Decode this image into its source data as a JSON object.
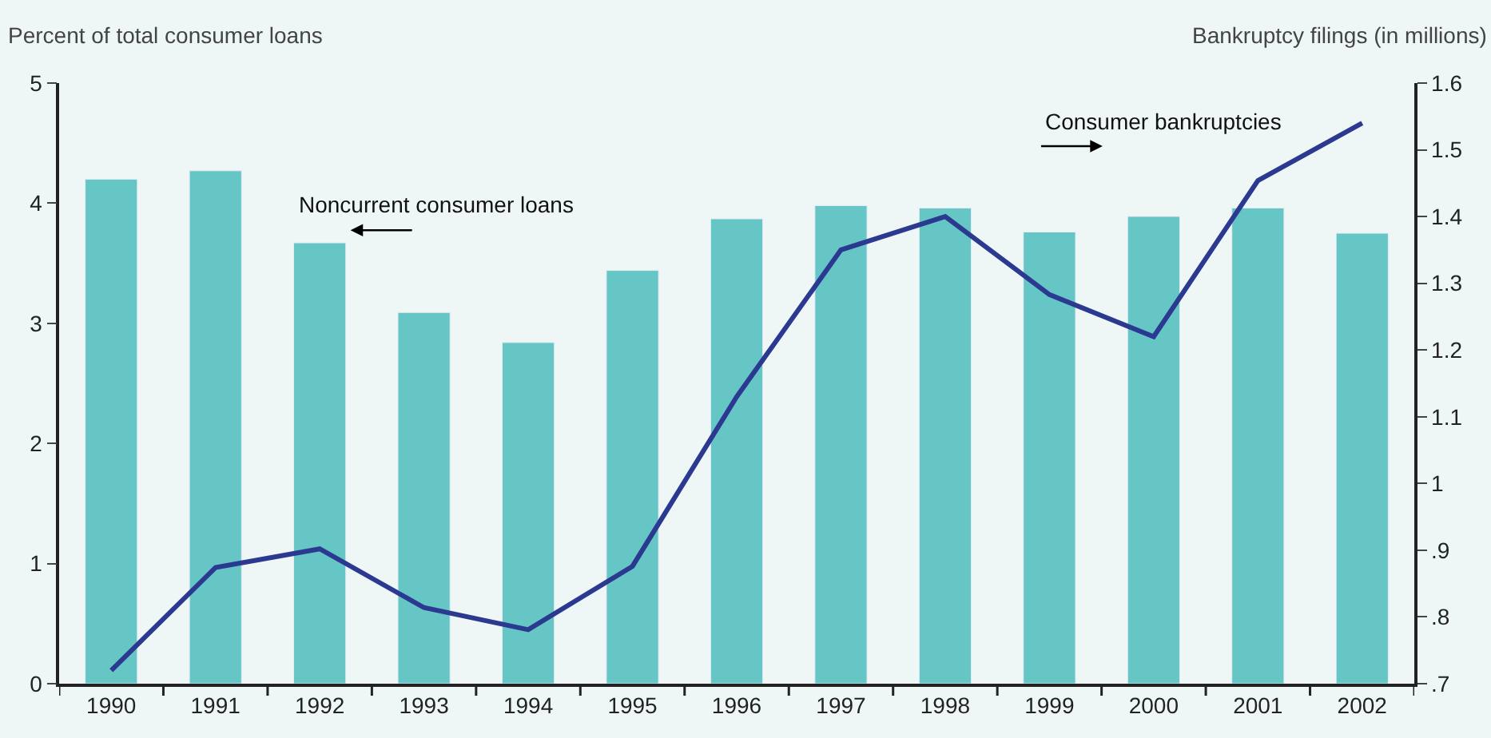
{
  "chart_data": {
    "type": "bar",
    "categories": [
      "1990",
      "1991",
      "1992",
      "1993",
      "1994",
      "1995",
      "1996",
      "1997",
      "1998",
      "1999",
      "2000",
      "2001",
      "2002"
    ],
    "ylabel": "Percent of total consumer loans",
    "y2label": "Bankruptcy filings (in millions)",
    "series": [
      {
        "name": "Noncurrent consumer loans",
        "color": "#66c6c5",
        "values": [
          4.2,
          4.27,
          3.67,
          3.09,
          2.84,
          3.44,
          3.87,
          3.98,
          3.96,
          3.76,
          3.89,
          3.96,
          3.75
        ]
      },
      {
        "name": "Consumer bankruptcies",
        "type": "line",
        "axis": "y2",
        "color": "#2b3990",
        "values": [
          0.72,
          0.874,
          0.902,
          0.814,
          0.781,
          0.876,
          1.13,
          1.35,
          1.4,
          1.283,
          1.22,
          1.454,
          1.54
        ]
      }
    ],
    "ylim": [
      0,
      5
    ],
    "yticks": [
      0,
      1,
      2,
      3,
      4,
      5
    ],
    "y2lim": [
      0.7,
      1.6
    ],
    "y2ticks": [
      {
        "value": 0.7,
        "label": ".7"
      },
      {
        "value": 0.8,
        "label": ".8"
      },
      {
        "value": 0.9,
        "label": ".9"
      },
      1,
      1.1,
      1.2,
      1.3,
      1.4,
      1.5,
      1.6
    ],
    "grid": false,
    "legend": false,
    "marker": "none",
    "line_style": "solid"
  }
}
